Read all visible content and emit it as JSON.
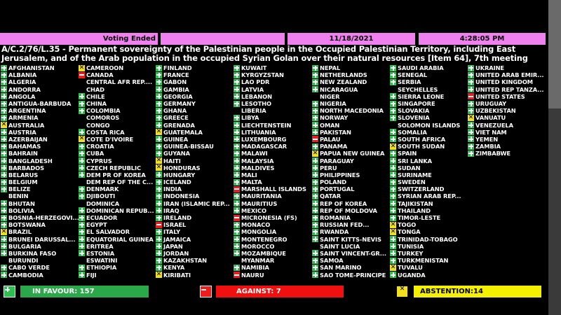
{
  "header": {
    "status": "Voting Ended",
    "blank": "",
    "date": "11/18/2021",
    "time": "4:28:05 PM"
  },
  "title": [
    "A/C.2/76/L.35 - Permanent sovereignty of the Palestinian people in the Occupied Palestinian Territory, including East",
    "Jerusalem, and of the Arab population in the occupied Syrian Golan over their natural resources [Item 64], 7th meeting"
  ],
  "colors": {
    "favour": "#2fbf50",
    "against": "#ee1c1c",
    "abstention": "#f0e020",
    "header": "#f080f0"
  },
  "columns": [
    [
      [
        "AFGHANISTAN",
        "Y"
      ],
      [
        "ALBANIA",
        "Y"
      ],
      [
        "ALGERIA",
        "Y"
      ],
      [
        "ANDORRA",
        "Y"
      ],
      [
        "ANGOLA",
        "Y"
      ],
      [
        "ANTIGUA-BARBUDA",
        "Y"
      ],
      [
        "ARGENTINA",
        "Y"
      ],
      [
        "ARMENIA",
        "Y"
      ],
      [
        "AUSTRALIA",
        "A"
      ],
      [
        "AUSTRIA",
        "Y"
      ],
      [
        "AZERBAIJAN",
        "Y"
      ],
      [
        "BAHAMAS",
        "Y"
      ],
      [
        "BAHRAIN",
        "Y"
      ],
      [
        "BANGLADESH",
        "Y"
      ],
      [
        "BARBADOS",
        "Y"
      ],
      [
        "BELARUS",
        "Y"
      ],
      [
        "BELGIUM",
        "Y"
      ],
      [
        "BELIZE",
        "Y"
      ],
      [
        "BENIN",
        ""
      ],
      [
        "BHUTAN",
        "Y"
      ],
      [
        "BOLIVIA",
        "Y"
      ],
      [
        "BOSNIA-HERZEGOVI...",
        "Y"
      ],
      [
        "BOTSWANA",
        "Y"
      ],
      [
        "BRAZIL",
        "A"
      ],
      [
        "BRUNEI DARUSSAL...",
        "Y"
      ],
      [
        "BULGARIA",
        "Y"
      ],
      [
        "BURKINA FASO",
        "Y"
      ],
      [
        "BURUNDI",
        ""
      ],
      [
        "CABO VERDE",
        "Y"
      ],
      [
        "CAMBODIA",
        "Y"
      ]
    ],
    [
      [
        "CAMEROON",
        "A"
      ],
      [
        "CANADA",
        "N"
      ],
      [
        "CENTRAL AFR REP....",
        ""
      ],
      [
        "CHAD",
        ""
      ],
      [
        "CHILE",
        "Y"
      ],
      [
        "CHINA",
        "Y"
      ],
      [
        "COLOMBIA",
        "Y"
      ],
      [
        "COMOROS",
        ""
      ],
      [
        "CONGO",
        ""
      ],
      [
        "COSTA RICA",
        "Y"
      ],
      [
        "COTE D'IVOIRE",
        "A"
      ],
      [
        "CROATIA",
        "Y"
      ],
      [
        "CUBA",
        "Y"
      ],
      [
        "CYPRUS",
        "Y"
      ],
      [
        "CZECH REPUBLIC",
        "Y"
      ],
      [
        "DEM PR OF KOREA",
        "Y"
      ],
      [
        "DEM REP OF THE C...",
        ""
      ],
      [
        "DENMARK",
        "Y"
      ],
      [
        "DJIBOUTI",
        "Y"
      ],
      [
        "DOMINICA",
        ""
      ],
      [
        "DOMINICAN REPUB...",
        "Y"
      ],
      [
        "ECUADOR",
        "Y"
      ],
      [
        "EGYPT",
        "Y"
      ],
      [
        "EL SALVADOR",
        "Y"
      ],
      [
        "EQUATORIAL GUINEA",
        "Y"
      ],
      [
        "ERITREA",
        "Y"
      ],
      [
        "ESTONIA",
        "Y"
      ],
      [
        "ESWATINI",
        ""
      ],
      [
        "ETHIOPIA",
        "Y"
      ],
      [
        "FIJI",
        "Y"
      ]
    ],
    [
      [
        "FINLAND",
        "Y"
      ],
      [
        "FRANCE",
        "Y"
      ],
      [
        "GABON",
        "Y"
      ],
      [
        "GAMBIA",
        "Y"
      ],
      [
        "GEORGIA",
        "Y"
      ],
      [
        "GERMANY",
        "Y"
      ],
      [
        "GHANA",
        "Y"
      ],
      [
        "GREECE",
        "Y"
      ],
      [
        "GRENADA",
        "Y"
      ],
      [
        "GUATEMALA",
        "A"
      ],
      [
        "GUINEA",
        "Y"
      ],
      [
        "GUINEA-BISSAU",
        "Y"
      ],
      [
        "GUYANA",
        "Y"
      ],
      [
        "HAITI",
        "A"
      ],
      [
        "HONDURAS",
        "A"
      ],
      [
        "HUNGARY",
        "Y"
      ],
      [
        "ICELAND",
        "Y"
      ],
      [
        "INDIA",
        "Y"
      ],
      [
        "INDONESIA",
        "Y"
      ],
      [
        "IRAN (ISLAMIC REP...",
        "Y"
      ],
      [
        "IRAQ",
        "Y"
      ],
      [
        "IRELAND",
        "Y"
      ],
      [
        "ISRAEL",
        "N"
      ],
      [
        "ITALY",
        "Y"
      ],
      [
        "JAMAICA",
        "Y"
      ],
      [
        "JAPAN",
        "Y"
      ],
      [
        "JORDAN",
        "Y"
      ],
      [
        "KAZAKHSTAN",
        "Y"
      ],
      [
        "KENYA",
        "Y"
      ],
      [
        "KIRIBATI",
        "A"
      ]
    ],
    [
      [
        "KUWAIT",
        "Y"
      ],
      [
        "KYRGYZSTAN",
        "Y"
      ],
      [
        "LAO PDR",
        "Y"
      ],
      [
        "LATVIA",
        "Y"
      ],
      [
        "LEBANON",
        "Y"
      ],
      [
        "LESOTHO",
        "Y"
      ],
      [
        "LIBERIA",
        ""
      ],
      [
        "LIBYA",
        "Y"
      ],
      [
        "LIECHTENSTEIN",
        "Y"
      ],
      [
        "LITHUANIA",
        "Y"
      ],
      [
        "LUXEMBOURG",
        "Y"
      ],
      [
        "MADAGASCAR",
        "Y"
      ],
      [
        "MALAWI",
        "Y"
      ],
      [
        "MALAYSIA",
        "Y"
      ],
      [
        "MALDIVES",
        "Y"
      ],
      [
        "MALI",
        "Y"
      ],
      [
        "MALTA",
        "Y"
      ],
      [
        "MARSHALL ISLANDS",
        "N"
      ],
      [
        "MAURITANIA",
        "Y"
      ],
      [
        "MAURITIUS",
        "Y"
      ],
      [
        "MEXICO",
        "Y"
      ],
      [
        "MICRONESIA (FS)",
        "N"
      ],
      [
        "MONACO",
        "Y"
      ],
      [
        "MONGOLIA",
        "Y"
      ],
      [
        "MONTENEGRO",
        "Y"
      ],
      [
        "MOROCCO",
        "Y"
      ],
      [
        "MOZAMBIQUE",
        "Y"
      ],
      [
        "MYANMAR",
        ""
      ],
      [
        "NAMIBIA",
        "Y"
      ],
      [
        "NAURU",
        "N"
      ]
    ],
    [
      [
        "NEPAL",
        "Y"
      ],
      [
        "NETHERLANDS",
        "Y"
      ],
      [
        "NEW ZEALAND",
        "Y"
      ],
      [
        "NICARAGUA",
        "Y"
      ],
      [
        "NIGER",
        ""
      ],
      [
        "NIGERIA",
        "Y"
      ],
      [
        "NORTH MACEDONIA",
        "Y"
      ],
      [
        "NORWAY",
        "Y"
      ],
      [
        "OMAN",
        "Y"
      ],
      [
        "PAKISTAN",
        "Y"
      ],
      [
        "PALAU",
        "N"
      ],
      [
        "PANAMA",
        "Y"
      ],
      [
        "PAPUA NEW GUINEA",
        "A"
      ],
      [
        "PARAGUAY",
        "Y"
      ],
      [
        "PERU",
        "Y"
      ],
      [
        "PHILIPPINES",
        "Y"
      ],
      [
        "POLAND",
        "Y"
      ],
      [
        "PORTUGAL",
        "Y"
      ],
      [
        "QATAR",
        "Y"
      ],
      [
        "REP OF KOREA",
        "Y"
      ],
      [
        "REP OF MOLDOVA",
        "Y"
      ],
      [
        "ROMANIA",
        "Y"
      ],
      [
        "RUSSIAN FED...",
        "Y"
      ],
      [
        "RWANDA",
        "Y"
      ],
      [
        "SAINT KITTS-NEVIS",
        "Y"
      ],
      [
        "SAINT LUCIA",
        ""
      ],
      [
        "SAINT VINCENT-GR...",
        "Y"
      ],
      [
        "SAMOA",
        "Y"
      ],
      [
        "SAN MARINO",
        "Y"
      ],
      [
        "SAO TOME-PRINCIPE",
        "Y"
      ]
    ],
    [
      [
        "SAUDI ARABIA",
        "Y"
      ],
      [
        "SENEGAL",
        "Y"
      ],
      [
        "SERBIA",
        "Y"
      ],
      [
        "SEYCHELLES",
        ""
      ],
      [
        "SIERRA LEONE",
        "Y"
      ],
      [
        "SINGAPORE",
        "Y"
      ],
      [
        "SLOVAKIA",
        "Y"
      ],
      [
        "SLOVENIA",
        "Y"
      ],
      [
        "SOLOMON ISLANDS",
        ""
      ],
      [
        "SOMALIA",
        "Y"
      ],
      [
        "SOUTH AFRICA",
        "Y"
      ],
      [
        "SOUTH SUDAN",
        "A"
      ],
      [
        "SPAIN",
        "Y"
      ],
      [
        "SRI LANKA",
        "Y"
      ],
      [
        "SUDAN",
        "Y"
      ],
      [
        "SURINAME",
        "Y"
      ],
      [
        "SWEDEN",
        "Y"
      ],
      [
        "SWITZERLAND",
        "Y"
      ],
      [
        "SYRIAN ARAB REP...",
        "Y"
      ],
      [
        "TAJIKISTAN",
        "Y"
      ],
      [
        "THAILAND",
        "Y"
      ],
      [
        "TIMOR-LESTE",
        "Y"
      ],
      [
        "TOGO",
        "A"
      ],
      [
        "TONGA",
        "A"
      ],
      [
        "TRINIDAD-TOBAGO",
        "Y"
      ],
      [
        "TUNISIA",
        "Y"
      ],
      [
        "TURKEY",
        "Y"
      ],
      [
        "TURKMENISTAN",
        "Y"
      ],
      [
        "TUVALU",
        "A"
      ],
      [
        "UGANDA",
        "Y"
      ]
    ],
    [
      [
        "UKRAINE",
        "Y"
      ],
      [
        "UNITED ARAB EMIR...",
        "Y"
      ],
      [
        "UNITED KINGDOM",
        "Y"
      ],
      [
        "UNITED REP TANZA...",
        "Y"
      ],
      [
        "UNITED STATES",
        "N"
      ],
      [
        "URUGUAY",
        "Y"
      ],
      [
        "UZBEKISTAN",
        "Y"
      ],
      [
        "VANUATU",
        "A"
      ],
      [
        "VENEZUELA",
        "Y"
      ],
      [
        "VIET NAM",
        "Y"
      ],
      [
        "YEMEN",
        "Y"
      ],
      [
        "ZAMBIA",
        "Y"
      ],
      [
        "ZIMBABWE",
        "Y"
      ]
    ]
  ],
  "totals": {
    "favour": "IN FAVOUR: 157",
    "against": "AGAINST: 7",
    "abstention": "ABSTENTION:14"
  }
}
